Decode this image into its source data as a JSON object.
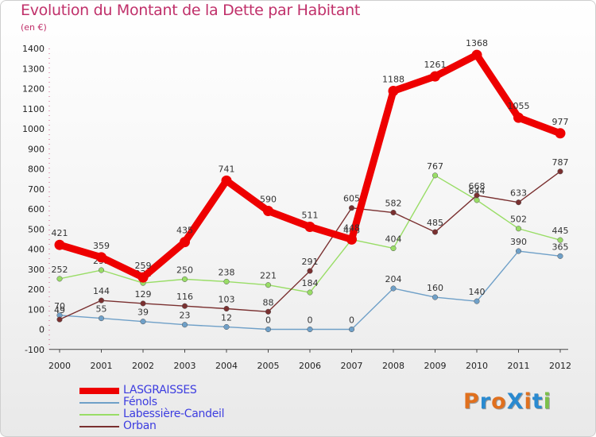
{
  "title": "Evolution du Montant de la Dette par Habitant",
  "unit": "(en €)",
  "logo": {
    "text": "ProXiti",
    "letter_colors": [
      "#e0701e",
      "#2a8ad0",
      "#e0701e",
      "#2a8ad0",
      "#e0701e",
      "#2a8ad0",
      "#7cc04a"
    ]
  },
  "chart_data": {
    "type": "line",
    "title": "Evolution du Montant de la Dette par Habitant",
    "ylabel": "(en €)",
    "xlabel": "",
    "x": [
      "2000",
      "2001",
      "2002",
      "2003",
      "2004",
      "2005",
      "2006",
      "2007",
      "2008",
      "2009",
      "2010",
      "2011",
      "2012"
    ],
    "ylim": [
      -100,
      1400
    ],
    "yticks": [
      -100,
      0,
      100,
      200,
      300,
      400,
      500,
      600,
      700,
      800,
      900,
      1000,
      1100,
      1200,
      1300,
      1400
    ],
    "grid": false,
    "legend_position": "bottom-left",
    "series": [
      {
        "name": "LASGRAISSES",
        "color": "#ee0000",
        "values": [
          421,
          359,
          259,
          435,
          741,
          590,
          511,
          448,
          1188,
          1261,
          1368,
          1055,
          977
        ],
        "labels": [
          "421",
          "359",
          "259",
          "435",
          "741",
          "590",
          "511",
          "448",
          "1188",
          "1261",
          "1368",
          "1055",
          "977"
        ]
      },
      {
        "name": "Fénols",
        "color": "#6fa0c8",
        "values": [
          70,
          55,
          39,
          23,
          12,
          0,
          0,
          0,
          204,
          160,
          140,
          390,
          365
        ],
        "labels": [
          "70",
          "55",
          "39",
          "23",
          "12",
          "0",
          "0",
          "0",
          "204",
          "160",
          "140",
          "390",
          "365"
        ]
      },
      {
        "name": "Labessière-Candeil",
        "color": "#99dd66",
        "values": [
          252,
          295,
          231,
          250,
          238,
          221,
          184,
          448,
          404,
          767,
          644,
          502,
          445
        ],
        "labels": [
          "252",
          "295",
          "231",
          "250",
          "238",
          "221",
          "184",
          "448",
          "404",
          "767",
          "644",
          "502",
          "445"
        ]
      },
      {
        "name": "Orban",
        "color": "#7a3030",
        "values": [
          49,
          144,
          129,
          116,
          103,
          88,
          291,
          605,
          582,
          485,
          668,
          633,
          787
        ],
        "labels": [
          "49",
          "144",
          "129",
          "116",
          "103",
          "88",
          "291",
          "605",
          "582",
          "485",
          "668",
          "633",
          "787"
        ]
      }
    ]
  }
}
